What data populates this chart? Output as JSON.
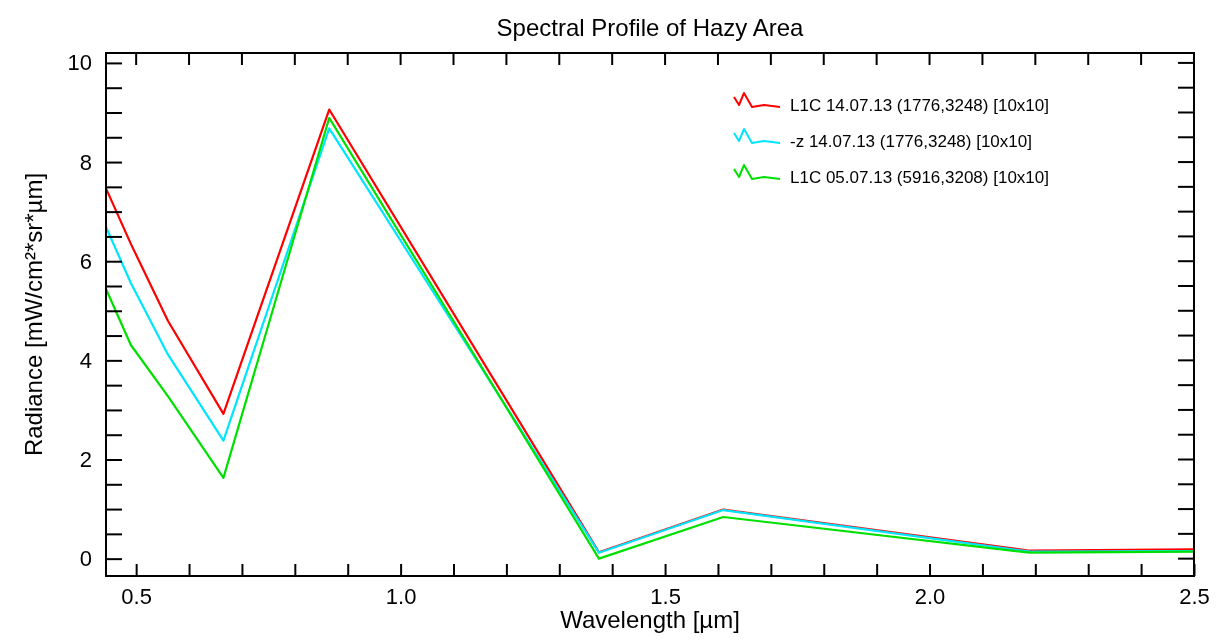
{
  "chart_data": {
    "type": "line",
    "title": "Spectral Profile of Hazy Area",
    "xlabel": "Wavelength [µm]",
    "ylabel": "Radiance [mW/cm²*sr*µm]",
    "x": [
      0.443,
      0.49,
      0.56,
      0.665,
      0.865,
      1.375,
      1.61,
      2.19,
      2.5
    ],
    "series": [
      {
        "name": "L1C 14.07.13 (1776,3248) [10x10]",
        "color": "#ff0000",
        "values": [
          7.47,
          6.35,
          4.8,
          2.92,
          9.06,
          0.13,
          0.99,
          0.16,
          0.19
        ]
      },
      {
        "name": "-z 14.07.13 (1776,3248) [10x10]",
        "color": "#00e5ff",
        "values": [
          6.69,
          5.56,
          4.12,
          2.38,
          8.68,
          0.12,
          0.98,
          0.14,
          0.15
        ]
      },
      {
        "name": "L1C 05.07.13 (5916,3208) [10x10]",
        "color": "#00e000",
        "values": [
          5.44,
          4.31,
          3.28,
          1.63,
          8.89,
          0.0,
          0.84,
          0.12,
          0.14
        ]
      }
    ],
    "xlim": [
      0.443,
      2.5
    ],
    "ylim": [
      -0.35,
      10.2
    ],
    "xticks": [
      {
        "value": 0.5,
        "label": "0.5"
      },
      {
        "value": 0.6,
        "label": null
      },
      {
        "value": 0.7,
        "label": null
      },
      {
        "value": 0.8,
        "label": null
      },
      {
        "value": 0.9,
        "label": null
      },
      {
        "value": 1.0,
        "label": "1.0"
      },
      {
        "value": 1.1,
        "label": null
      },
      {
        "value": 1.2,
        "label": null
      },
      {
        "value": 1.3,
        "label": null
      },
      {
        "value": 1.4,
        "label": null
      },
      {
        "value": 1.5,
        "label": "1.5"
      },
      {
        "value": 1.6,
        "label": null
      },
      {
        "value": 1.7,
        "label": null
      },
      {
        "value": 1.8,
        "label": null
      },
      {
        "value": 1.9,
        "label": null
      },
      {
        "value": 2.0,
        "label": "2.0"
      },
      {
        "value": 2.1,
        "label": null
      },
      {
        "value": 2.2,
        "label": null
      },
      {
        "value": 2.3,
        "label": null
      },
      {
        "value": 2.4,
        "label": null
      },
      {
        "value": 2.5,
        "label": "2.5"
      }
    ],
    "yticks": [
      0,
      {
        "value": 0.5,
        "label": null
      },
      {
        "value": 1,
        "label": null
      },
      {
        "value": 1.5,
        "label": null
      },
      2,
      {
        "value": 2.5,
        "label": null
      },
      {
        "value": 3,
        "label": null
      },
      {
        "value": 3.5,
        "label": null
      },
      4,
      {
        "value": 4.5,
        "label": null
      },
      {
        "value": 5,
        "label": null
      },
      {
        "value": 5.5,
        "label": null
      },
      6,
      {
        "value": 6.5,
        "label": null
      },
      {
        "value": 7,
        "label": null
      },
      {
        "value": 7.5,
        "label": null
      },
      8,
      {
        "value": 8.5,
        "label": null
      },
      {
        "value": 9,
        "label": null
      },
      {
        "value": 9.5,
        "label": null
      },
      10
    ],
    "legend": "top right",
    "grid": false,
    "marker": "none",
    "line_style": "solid"
  }
}
